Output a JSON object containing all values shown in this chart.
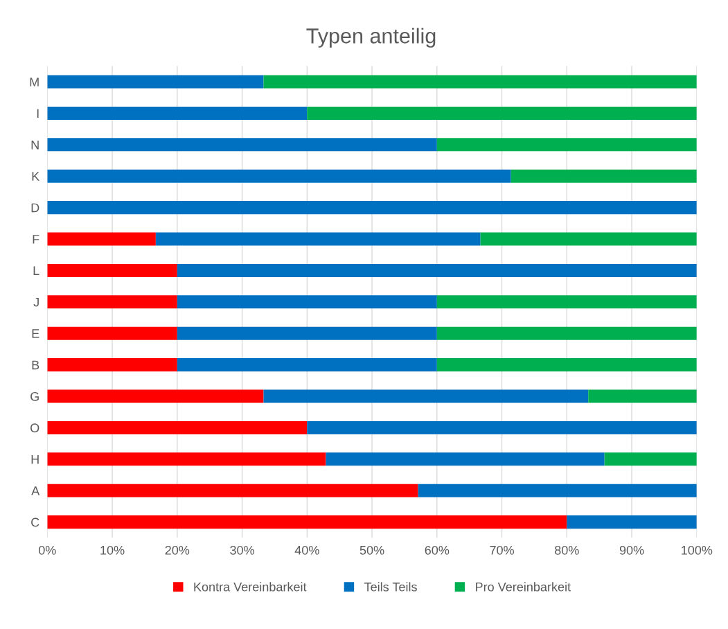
{
  "chart_data": {
    "type": "bar",
    "title": "Typen anteilig",
    "orientation": "horizontal",
    "stacked": true,
    "categories": [
      "M",
      "I",
      "N",
      "K",
      "D",
      "F",
      "L",
      "J",
      "E",
      "B",
      "G",
      "O",
      "H",
      "A",
      "C"
    ],
    "series": [
      {
        "name": "Kontra Vereinbarkeit",
        "color": "#ff0000",
        "values": [
          0,
          0,
          0,
          0,
          0,
          16.7,
          20,
          20,
          20,
          20,
          33.3,
          40,
          42.9,
          57.1,
          80
        ]
      },
      {
        "name": "Teils Teils",
        "color": "#0070c0",
        "values": [
          33.3,
          40,
          60,
          71.4,
          100,
          50,
          80,
          40,
          40,
          40,
          50,
          60,
          42.9,
          42.9,
          20
        ]
      },
      {
        "name": "Pro Vereinbarkeit",
        "color": "#00b050",
        "values": [
          66.7,
          60,
          40,
          28.6,
          0,
          33.3,
          0,
          40,
          40,
          40,
          16.7,
          0,
          14.2,
          0,
          0
        ]
      }
    ],
    "xlim": [
      0,
      100
    ],
    "xticks": [
      {
        "value": 0,
        "label": "0%"
      },
      {
        "value": 10,
        "label": "10%"
      },
      {
        "value": 20,
        "label": "20%"
      },
      {
        "value": 30,
        "label": "30%"
      },
      {
        "value": 40,
        "label": "40%"
      },
      {
        "value": 50,
        "label": "50%"
      },
      {
        "value": 60,
        "label": "60%"
      },
      {
        "value": 70,
        "label": "70%"
      },
      {
        "value": 80,
        "label": "80%"
      },
      {
        "value": 90,
        "label": "90%"
      },
      {
        "value": 100,
        "label": "100%"
      }
    ],
    "grid": "x",
    "legend": "bottom"
  }
}
